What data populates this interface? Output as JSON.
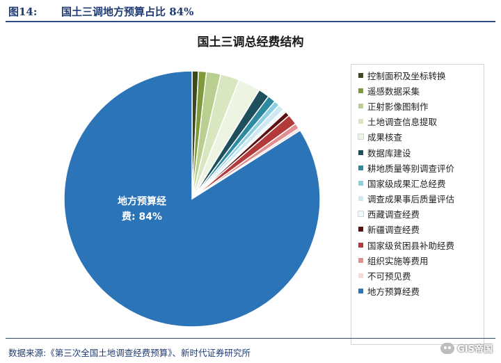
{
  "figure": {
    "number": "图14:",
    "title": "国土三调地方预算占比 84%"
  },
  "source": "数据来源:《第三次全国土地调查经费预算》、新时代证券研究所",
  "watermark": "GIS帝国",
  "chart_data": {
    "type": "pie",
    "title": "国土三调总经费结构",
    "slice_label": [
      "地方预算经",
      "费: 84%"
    ],
    "legend_position": "right",
    "unit": "%",
    "slices": [
      {
        "label": "控制面积及坐标转换",
        "value": 0.8,
        "color": "#3d4a1f"
      },
      {
        "label": "遥感数据采集",
        "value": 1.0,
        "color": "#7f9a3c"
      },
      {
        "label": "正射影像图制作",
        "value": 1.8,
        "color": "#b9cf8f"
      },
      {
        "label": "土地调查信息提取",
        "value": 2.4,
        "color": "#d9e7c1"
      },
      {
        "label": "成果核查",
        "value": 2.8,
        "color": "#eef4e2"
      },
      {
        "label": "数据库建设",
        "value": 1.4,
        "color": "#1e4f5c"
      },
      {
        "label": "耕地质量等别调查评价",
        "value": 1.0,
        "color": "#2e8aa0"
      },
      {
        "label": "国家级成果汇总经费",
        "value": 0.7,
        "color": "#8ecfe0"
      },
      {
        "label": "调查成果事后质量评估",
        "value": 0.8,
        "color": "#cfe8f1"
      },
      {
        "label": "西藏调查经费",
        "value": 0.4,
        "color": "#f1f8fb"
      },
      {
        "label": "新疆调查经费",
        "value": 0.6,
        "color": "#5c1111"
      },
      {
        "label": "国家级贫困县补助经费",
        "value": 1.3,
        "color": "#b23a3a"
      },
      {
        "label": "组织实施等费用",
        "value": 0.7,
        "color": "#e28f8f"
      },
      {
        "label": "不可预见费",
        "value": 0.3,
        "color": "#f7dada"
      },
      {
        "label": "地方预算经费",
        "value": 84.0,
        "color": "#2b74b8"
      }
    ]
  }
}
